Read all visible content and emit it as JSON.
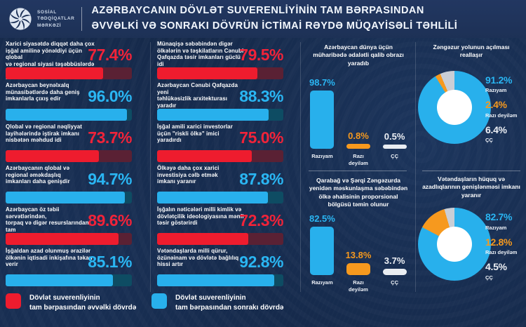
{
  "header": {
    "logo_text": "SOSİAL\nTƏDQİQATLAR\nMƏRKƏZİ",
    "title": "AZƏRBAYCANIN DÖVLƏT SUVERENLİYİNİN TAM BƏRPASINDAN\nƏVVƏLKİ VƏ SONRAKI DÖVRÜN İCTİMAİ RƏYDƏ MÜQAYİSƏLİ TƏHLİLİ"
  },
  "colors": {
    "background": "#15294a",
    "header_background": "#203459",
    "red": "#ee1c2e",
    "red_track": "#5a2134",
    "blue": "#28b0ec",
    "blue_track": "#0e4c63",
    "orange": "#f6991e",
    "white_bar": "#e9edf2",
    "gray_slice": "#c9ced6",
    "donut_hole": "#ffffff",
    "text": "#ffffff"
  },
  "stat_columns": [
    {
      "items": [
        {
          "text": "Xarici siyasətdə diqqət daha çox\nişğal amilinə yönəldiyi üçün qlobal\nvə regional siyasi təşəbbüslərdə\niştirak imkanı nisbətən məhdud idi",
          "value": "77.4%",
          "pct": 77.4,
          "period": "before"
        },
        {
          "text": "Azərbaycan beynəlxalq\nmünasibətlərdə daha geniş\nimkanlarla çıxış edir",
          "value": "96.0%",
          "pct": 96.0,
          "period": "after"
        },
        {
          "text": "Qlobal və regional nəqliyyat\nlayihələrində iştirak imkanı\nnisbətən məhdud idi",
          "value": "73.7%",
          "pct": 73.7,
          "period": "before"
        },
        {
          "text": "Azərbaycanın qlobal və\nregional əməkdaşlıq\nimkanları daha genişdir",
          "value": "94.7%",
          "pct": 94.7,
          "period": "after"
        },
        {
          "text": "Azərbaycan öz təbii sərvətlərindən,\ntorpaq və digər resurslarından tam\nistifadə edə bilmirdi",
          "value": "89.6%",
          "pct": 89.6,
          "period": "before"
        },
        {
          "text": "İşğaldan azad olunmuş ərazilər\nölkənin iqtisadi inkişafına təkan\nverir",
          "value": "85.1%",
          "pct": 85.1,
          "period": "after"
        }
      ]
    },
    {
      "items": [
        {
          "text": "Münaqişə səbəbindən digər\nölkələrin və təşkilatların Cənubi\nQafqazda təsir imkanları güclü idi",
          "value": "79.5%",
          "pct": 79.5,
          "period": "before"
        },
        {
          "text": "Azərbaycan Cənubi Qafqazda yeni\ntəhlükəsizlik arxitekturası yaradır",
          "value": "88.3%",
          "pct": 88.3,
          "period": "after"
        },
        {
          "text": "İşğal amili xarici investorlar\nüçün \"riskli ölkə\" imici\nyaradırdı",
          "value": "75.0%",
          "pct": 75.0,
          "period": "before"
        },
        {
          "text": "Ölkəyə daha çox xarici\ninvestisiya cəlb etmək\nimkanı yaranır",
          "value": "87.8%",
          "pct": 87.8,
          "period": "after"
        },
        {
          "text": "İşğalın nəticələri milli kimlik və\ndövlətçilik ideologiyasına mənfi\ntəsir göstərirdi",
          "value": "72.3%",
          "pct": 72.3,
          "period": "before"
        },
        {
          "text": "Vətəndaşlarda milli qürur,\nözünəinam və dövlətə bağlılıq\nhissi artır",
          "value": "92.8%",
          "pct": 92.8,
          "period": "after"
        }
      ]
    }
  ],
  "column_charts": [
    {
      "title": "Azərbaycan dünya üçün\nmüharibədə ədalətli qalib obrazı\nyaradıb",
      "bars": [
        {
          "label": "Razıyam",
          "value": "98.7%",
          "pct": 98.7,
          "color": "blue"
        },
        {
          "label": "Razı\ndeyiləm",
          "value": "0.8%",
          "pct": 0.8,
          "color": "orange"
        },
        {
          "label": "ÇÇ",
          "value": "0.5%",
          "pct": 0.5,
          "color": "white"
        }
      ]
    },
    {
      "title": "Qarabağ və Şərqi Zəngəzurda\nyenidən məskunlaşma səbəbindən\nölkə əhalisinin proporsional\nbölgüsü təmin olunur",
      "bars": [
        {
          "label": "Razıyam",
          "value": "82.5%",
          "pct": 82.5,
          "color": "blue"
        },
        {
          "label": "Razı\ndeyiləm",
          "value": "13.8%",
          "pct": 13.8,
          "color": "orange"
        },
        {
          "label": "ÇÇ",
          "value": "3.7%",
          "pct": 3.7,
          "color": "white"
        }
      ]
    }
  ],
  "donut_charts": [
    {
      "title": "Zəngəzur yolunun açılması\nreallaşır",
      "slices": [
        {
          "label": "Razıyam",
          "value": "91.2%",
          "pct": 91.2,
          "color": "blue"
        },
        {
          "label": "Razı deyiləm",
          "value": "2.4%",
          "pct": 2.4,
          "color": "orange"
        },
        {
          "label": "ÇÇ",
          "value": "6.4%",
          "pct": 6.4,
          "color": "gray"
        }
      ]
    },
    {
      "title": "Vətəndaşların hüquq və\nazadlıqlarının genişlənməsi imkanı\nyaranır",
      "slices": [
        {
          "label": "Razıyam",
          "value": "82.7%",
          "pct": 82.7,
          "color": "blue"
        },
        {
          "label": "Razı deyiləm",
          "value": "12.8%",
          "pct": 12.8,
          "color": "orange"
        },
        {
          "label": "ÇÇ",
          "value": "4.5%",
          "pct": 4.5,
          "color": "gray"
        }
      ]
    }
  ],
  "legend": [
    {
      "label": "Dövlət suverenliyinin\ntam bərpasından əvvəlki dövrdə",
      "color": "#ee1c2e"
    },
    {
      "label": "Dövlət suverenliyinin\ntam bərpasından sonrakı dövrdə",
      "color": "#28b0ec"
    }
  ],
  "chart_data": [
    {
      "type": "bar",
      "name": "left-column-statements",
      "orientation": "horizontal",
      "unit": "%",
      "xlim": [
        0,
        100
      ],
      "categories": [
        "Xarici siyasətdə diqqət daha çox işğal amilinə yönəldiyi üçün qlobal və regional siyasi təşəbbüslərdə iştirak imkanı nisbətən məhdud idi",
        "Azərbaycan beynəlxalq münasibətlərdə daha geniş imkanlarla çıxış edir",
        "Qlobal və regional nəqliyyat layihələrində iştirak imkanı nisbətən məhdud idi",
        "Azərbaycanın qlobal və regional əməkdaşlıq imkanları daha genişdir",
        "Azərbaycan öz təbii sərvətlərindən, torpaq və digər resurslarından tam istifadə edə bilmirdi",
        "İşğaldan azad olunmuş ərazilər ölkənin iqtisadi inkişafına təkan verir"
      ],
      "values": [
        77.4,
        96.0,
        73.7,
        94.7,
        89.6,
        85.1
      ],
      "period": [
        "əvvəlki dövr",
        "sonrakı dövr",
        "əvvəlki dövr",
        "sonrakı dövr",
        "əvvəlki dövr",
        "sonrakı dövr"
      ]
    },
    {
      "type": "bar",
      "name": "middle-column-statements",
      "orientation": "horizontal",
      "unit": "%",
      "xlim": [
        0,
        100
      ],
      "categories": [
        "Münaqişə səbəbindən digər ölkələrin və təşkilatların Cənubi Qafqazda təsir imkanları güclü idi",
        "Azərbaycan Cənubi Qafqazda yeni təhlükəsizlik arxitekturası yaradır",
        "İşğal amili xarici investorlar üçün \"riskli ölkə\" imici yaradırdı",
        "Ölkəyə daha çox xarici investisiya cəlb etmək imkanı yaranır",
        "İşğalın nəticələri milli kimlik və dövlətçilik ideologiyasına mənfi təsir göstərirdi",
        "Vətəndaşlarda milli qürur, özünəinam və dövlətə bağlılıq hissi artır"
      ],
      "values": [
        79.5,
        88.3,
        75.0,
        87.8,
        72.3,
        92.8
      ],
      "period": [
        "əvvəlki dövr",
        "sonrakı dövr",
        "əvvəlki dövr",
        "sonrakı dövr",
        "əvvəlki dövr",
        "sonrakı dövr"
      ]
    },
    {
      "type": "bar",
      "title": "Azərbaycan dünya üçün müharibədə ədalətli qalib obrazı yaradıb",
      "categories": [
        "Razıyam",
        "Razı deyiləm",
        "ÇÇ"
      ],
      "values": [
        98.7,
        0.8,
        0.5
      ],
      "unit": "%",
      "ylim": [
        0,
        100
      ],
      "grid": false
    },
    {
      "type": "bar",
      "title": "Qarabağ və Şərqi Zəngəzurda yenidən məskunlaşma səbəbindən ölkə əhalisinin proporsional bölgüsü təmin olunur",
      "categories": [
        "Razıyam",
        "Razı deyiləm",
        "ÇÇ"
      ],
      "values": [
        82.5,
        13.8,
        3.7
      ],
      "unit": "%",
      "ylim": [
        0,
        100
      ],
      "grid": false
    },
    {
      "type": "pie",
      "subtype": "donut",
      "title": "Zəngəzur yolunun açılması reallaşır",
      "categories": [
        "Razıyam",
        "Razı deyiləm",
        "ÇÇ"
      ],
      "values": [
        91.2,
        2.4,
        6.4
      ],
      "legend_position": "right"
    },
    {
      "type": "pie",
      "subtype": "donut",
      "title": "Vətəndaşların hüquq və azadlıqlarının genişlənməsi imkanı yaranır",
      "categories": [
        "Razıyam",
        "Razı deyiləm",
        "ÇÇ"
      ],
      "values": [
        82.7,
        12.8,
        4.5
      ],
      "legend_position": "right"
    }
  ]
}
